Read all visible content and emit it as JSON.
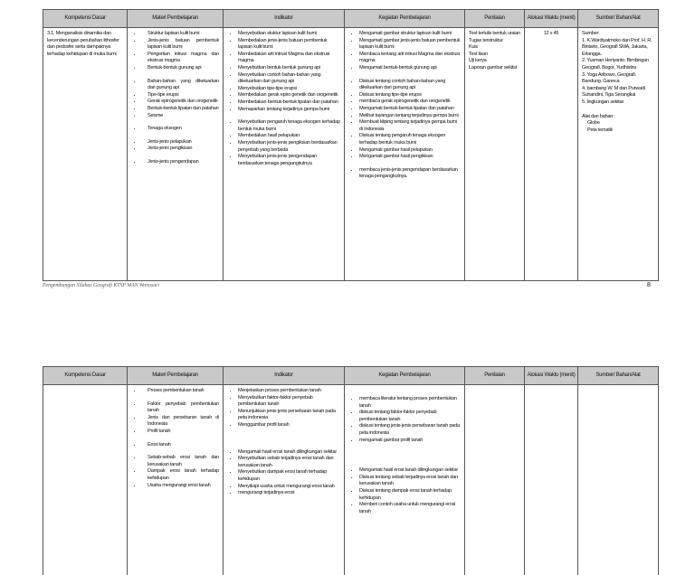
{
  "headers": [
    "Kompetensi Dasar",
    "Materi Pembelajaran",
    "Indikator",
    "Kegiatan Pembelajaran",
    "Penilaian",
    "Alokasi Waktu (menit)",
    "Sumber/ Bahan/Alat"
  ],
  "page1": {
    "kd": "3.1. Menganalisis dinamika dan kecenderungan perubahan lithosfer dan pedosfer serta dampaknya terhadap kehidupan di muka bumi",
    "materi": [
      [
        "Struktur lapisan kulit bumi",
        "Jenis-jenis batuan pembentuk lapisan kulit bumi",
        "Pengertian intrusi magma dan ekstrusi magma",
        "Bentuk-bentuk gunung api"
      ],
      [
        "Bahan-bahan yang dikeluarkan dari gunung api",
        "Tipe-tipe erupsi",
        "Gerak epirogenetik dan orogenetik",
        "Bentuk-bentuk lipatan dan patahan",
        "Seisme"
      ],
      [
        "Tenaga eksogen"
      ],
      [
        "Jenis-jenis pelapukan",
        "Jenis-jenis pengikisan"
      ],
      [
        "Jenis-jenis pengendapan"
      ]
    ],
    "indikator": [
      [
        "Menyebutkan stuktur lapisan kulit bumi",
        "Membedakan jenis-jenis batuan pembentuk lapisan kulit bumi",
        "Membedakan arti intrusi Magma dan ekstrusi magma",
        "Menyebutkan bentuk-bentuk gunung api",
        "Menyebutkan contoh bahan-bahan yang dikeluarkan dari gunung api",
        "Menyebutkan tipe-tipe erupsi",
        "Membedakan gerak epiro genetik dan orogenetik",
        "Membedakan bentuk-bentuk lipatan dan patahan",
        "Memaparkan tentang terjadinya gempa bumi"
      ],
      [
        "Menyebutkan pengaruh tenaga eksogen terhadap bentuk muka bumi",
        "Membedakan hasil pelapukan",
        "Menyebutkan jenis-jenis pengikisan berdasarkan penyebab yang berbeda",
        "Menyebutkan jenis-jenis pengendapan berdasarkan tenaga pengangkutnya"
      ]
    ],
    "kegiatan": [
      [
        "Mengamati gambar struktur lapisan kulit bumi",
        "Mengamati gambar jenis-jenis batuan pembentuk lapisan kulit bumi",
        "Membaca tentang arti intrusi Magma dan ekstrusi magma",
        "Mengamati bentuk-bentuk gunung api"
      ],
      [
        "Diskusi tentang contoh bahan-bahan yang dikeluarkan dari gunung api",
        "Diskusi tentang tipe-tipe erupsi",
        "membaca gerak epirogenetik dan orogenetik",
        "Mengamati bentuk-bentuk lipatan dan patahan",
        "Melihat tayangan tentang terjadinya gempa bumi",
        "Membuat kliping tentang terjadinya gempa bumi di Indonesia",
        "Diskusi tentang pengaruh tenaga eksogen terhadap bentuk muka bumi",
        "Mengamati gambar hasil pelapukan",
        "Mengamati gambar hasil pengikisan"
      ],
      [
        "membaca jenis-jenis pengendapan berdasarkan tenaga pengangkutnya."
      ]
    ],
    "penilaian": [
      "Test tertulis bentuk uraian",
      "Tugas terstruktur",
      "Kuis",
      "Test lisan",
      "Uji kerya",
      "Laporan gambar sekitst"
    ],
    "alokasi": "12 x 45",
    "sumber_label": "Sumber:",
    "sumber": [
      "1. K.Wardiyatmoko dan Prof. H. R. Bintarto, Geografi SMA, Jakarta, Erlangga.",
      "2. Yusman Heriyanto. Bimbingan Geografi, Bogor, Yudhistira",
      "3. Yoga Aribowo, Geografi. Bandung. Ganeca",
      "4. bambang W. M dan Purwadi Suhandini, Tiga Serangkai",
      "5. lingkungan sekitar"
    ],
    "alat_label": "Alat dan bahan:",
    "alat": [
      "Globe",
      "Peta tematik"
    ]
  },
  "footer": "Pengembangan Silabus Geografi KTSP MAN Wonosari",
  "page_number": "8",
  "page2": {
    "materi": [
      [
        "Proses pembentukan tanah"
      ],
      [
        "Faktor penyebab pembentukan tanah",
        "Jenis dan persebaran tanah di Indonesia",
        "Profil tanah"
      ],
      [
        "Erosi tanah"
      ],
      [
        "Sebab-sebab erosi tanah dan kerusakan tanah",
        "Dampak erosi tanah terhadap kehidupan",
        "Usaha mengurangi erosi tanah"
      ]
    ],
    "indikator": [
      [
        "Menjelaskan proses pembentukan tanah",
        "Menyebutkan faktor-faktor penyebab pembentukan tanah",
        "Menunjukkan jenis-jenis persebaran tanah pada peta indonesia",
        "Menggambar profil tanah"
      ],
      [
        "Mengamati hasil erosi tanah dilingkungan sekitar",
        "Menyebutkan sebab terjadinya erosi tanah dan kerusakan tanah",
        "Menyebutkan dampak erosi tanah terhadap kehidupan",
        "Menyikapi usaha untuk mengurangi erosi tanah",
        "mengurangi terjadinya erosi"
      ]
    ],
    "kegiatan": [
      [
        "membaca literatur tentang proses pembentukan tanah",
        "diskusi tentang faktor-faktor penyebab pembentukan tanah",
        "diskusi tentang jenis-jenis persebaran tanah pada peta indonesia",
        "mengamati gambar profil tanah"
      ],
      [
        "Mengamati hasil erosi tanah dilingkungan sekitar",
        "Diskusi tentang sebab terjadinya erosi tanah dan kerusakan tanah",
        "Diskusi tentang dampak erosi tanah terhadap kehidupan",
        "Memberi contoh usaha untuk mengurangi erosi tanah"
      ]
    ]
  }
}
